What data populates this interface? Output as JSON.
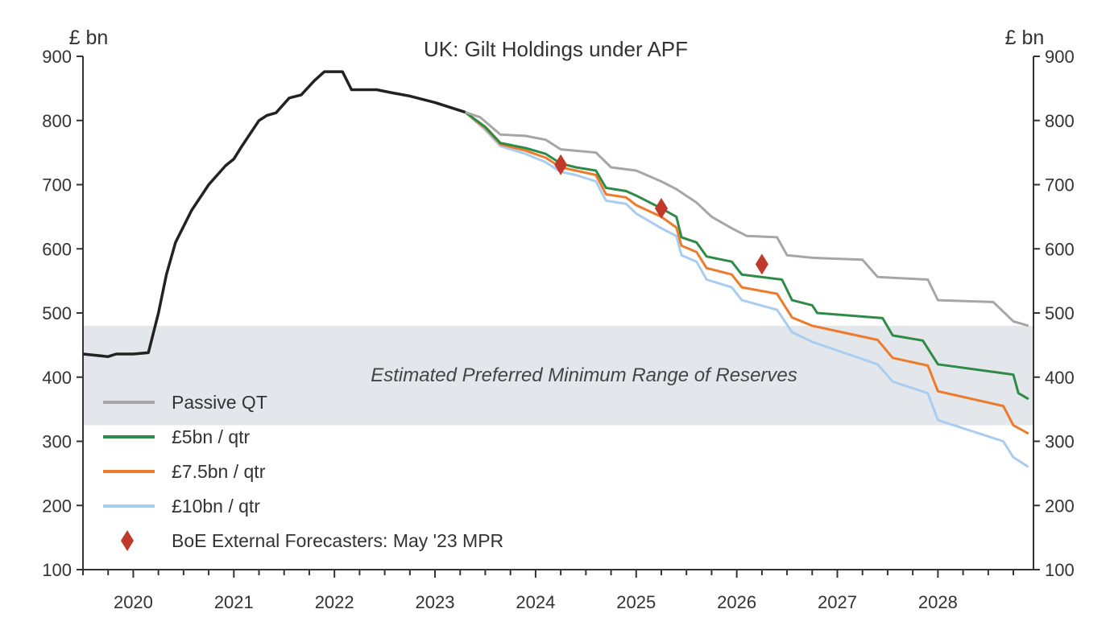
{
  "chart_data": {
    "type": "line",
    "title": "UK: Gilt Holdings under APF",
    "ylabel_left": "£ bn",
    "ylabel_right": "£ bn",
    "ylim": [
      100,
      900
    ],
    "yticks": [
      100,
      200,
      300,
      400,
      500,
      600,
      700,
      800,
      900
    ],
    "xlim": [
      2019.5,
      2028.95
    ],
    "xticks": [
      2020,
      2021,
      2022,
      2023,
      2024,
      2025,
      2026,
      2027,
      2028
    ],
    "grid": false,
    "legend_position": "lower-left",
    "band": {
      "label": "Estimated Preferred Minimum Range of Reserves",
      "ymin": 325,
      "ymax": 480,
      "color": "#e3e6ea"
    },
    "historical": {
      "color": "#222222",
      "points": [
        [
          2019.5,
          436
        ],
        [
          2019.75,
          432
        ],
        [
          2019.83,
          436
        ],
        [
          2020.0,
          436
        ],
        [
          2020.15,
          438
        ],
        [
          2020.25,
          500
        ],
        [
          2020.33,
          560
        ],
        [
          2020.42,
          610
        ],
        [
          2020.58,
          660
        ],
        [
          2020.75,
          700
        ],
        [
          2020.92,
          730
        ],
        [
          2021.0,
          740
        ],
        [
          2021.08,
          760
        ],
        [
          2021.25,
          800
        ],
        [
          2021.33,
          808
        ],
        [
          2021.42,
          812
        ],
        [
          2021.55,
          835
        ],
        [
          2021.67,
          840
        ],
        [
          2021.8,
          862
        ],
        [
          2021.9,
          876
        ],
        [
          2022.08,
          876
        ],
        [
          2022.17,
          848
        ],
        [
          2022.42,
          848
        ],
        [
          2022.58,
          843
        ],
        [
          2022.75,
          838
        ],
        [
          2023.0,
          828
        ],
        [
          2023.3,
          813
        ]
      ]
    },
    "series": [
      {
        "name": "Passive QT",
        "color": "#a6a6a6",
        "points": [
          [
            2023.3,
            813
          ],
          [
            2023.45,
            805
          ],
          [
            2023.65,
            778
          ],
          [
            2023.9,
            776
          ],
          [
            2024.1,
            770
          ],
          [
            2024.25,
            755
          ],
          [
            2024.6,
            750
          ],
          [
            2024.75,
            727
          ],
          [
            2025.0,
            722
          ],
          [
            2025.25,
            705
          ],
          [
            2025.4,
            693
          ],
          [
            2025.6,
            672
          ],
          [
            2025.75,
            650
          ],
          [
            2025.95,
            632
          ],
          [
            2026.1,
            620
          ],
          [
            2026.4,
            618
          ],
          [
            2026.5,
            590
          ],
          [
            2026.75,
            586
          ],
          [
            2027.25,
            583
          ],
          [
            2027.4,
            556
          ],
          [
            2027.9,
            552
          ],
          [
            2028.0,
            520
          ],
          [
            2028.55,
            517
          ],
          [
            2028.75,
            487
          ],
          [
            2028.9,
            480
          ]
        ]
      },
      {
        "name": "£5bn / qtr",
        "color": "#2e8b47",
        "points": [
          [
            2023.3,
            813
          ],
          [
            2023.5,
            790
          ],
          [
            2023.65,
            765
          ],
          [
            2023.9,
            757
          ],
          [
            2024.1,
            748
          ],
          [
            2024.25,
            733
          ],
          [
            2024.4,
            727
          ],
          [
            2024.6,
            722
          ],
          [
            2024.7,
            695
          ],
          [
            2024.9,
            690
          ],
          [
            2025.0,
            683
          ],
          [
            2025.25,
            663
          ],
          [
            2025.4,
            650
          ],
          [
            2025.45,
            618
          ],
          [
            2025.6,
            610
          ],
          [
            2025.7,
            588
          ],
          [
            2025.95,
            580
          ],
          [
            2026.05,
            560
          ],
          [
            2026.45,
            552
          ],
          [
            2026.55,
            520
          ],
          [
            2026.75,
            512
          ],
          [
            2026.8,
            500
          ],
          [
            2027.45,
            492
          ],
          [
            2027.55,
            465
          ],
          [
            2027.85,
            457
          ],
          [
            2028.0,
            420
          ],
          [
            2028.75,
            404
          ],
          [
            2028.8,
            375
          ],
          [
            2028.9,
            366
          ]
        ]
      },
      {
        "name": "£7.5bn / qtr",
        "color": "#ee7a2b",
        "points": [
          [
            2023.3,
            813
          ],
          [
            2023.5,
            788
          ],
          [
            2023.65,
            763
          ],
          [
            2023.9,
            753
          ],
          [
            2024.1,
            742
          ],
          [
            2024.25,
            727
          ],
          [
            2024.4,
            722
          ],
          [
            2024.6,
            715
          ],
          [
            2024.7,
            685
          ],
          [
            2024.9,
            680
          ],
          [
            2025.0,
            668
          ],
          [
            2025.25,
            650
          ],
          [
            2025.4,
            633
          ],
          [
            2025.45,
            605
          ],
          [
            2025.6,
            595
          ],
          [
            2025.7,
            570
          ],
          [
            2025.95,
            560
          ],
          [
            2026.05,
            540
          ],
          [
            2026.4,
            530
          ],
          [
            2026.55,
            493
          ],
          [
            2026.75,
            480
          ],
          [
            2027.4,
            458
          ],
          [
            2027.55,
            430
          ],
          [
            2027.9,
            418
          ],
          [
            2028.0,
            378
          ],
          [
            2028.65,
            355
          ],
          [
            2028.75,
            325
          ],
          [
            2028.9,
            312
          ]
        ]
      },
      {
        "name": "£10bn / qtr",
        "color": "#a9cdf0",
        "points": [
          [
            2023.3,
            813
          ],
          [
            2023.5,
            785
          ],
          [
            2023.65,
            760
          ],
          [
            2023.9,
            748
          ],
          [
            2024.1,
            735
          ],
          [
            2024.25,
            720
          ],
          [
            2024.4,
            715
          ],
          [
            2024.6,
            705
          ],
          [
            2024.7,
            675
          ],
          [
            2024.9,
            670
          ],
          [
            2025.0,
            655
          ],
          [
            2025.25,
            632
          ],
          [
            2025.4,
            620
          ],
          [
            2025.45,
            590
          ],
          [
            2025.6,
            580
          ],
          [
            2025.7,
            552
          ],
          [
            2025.95,
            540
          ],
          [
            2026.05,
            520
          ],
          [
            2026.4,
            505
          ],
          [
            2026.55,
            470
          ],
          [
            2026.75,
            455
          ],
          [
            2027.4,
            420
          ],
          [
            2027.55,
            393
          ],
          [
            2027.9,
            375
          ],
          [
            2028.0,
            333
          ],
          [
            2028.65,
            300
          ],
          [
            2028.75,
            275
          ],
          [
            2028.9,
            260
          ]
        ]
      }
    ],
    "forecasts": {
      "name": "BoE External Forecasters: May '23 MPR",
      "color": "#c0392b",
      "points": [
        [
          2024.25,
          731
        ],
        [
          2025.25,
          663
        ],
        [
          2026.25,
          576
        ]
      ]
    }
  }
}
